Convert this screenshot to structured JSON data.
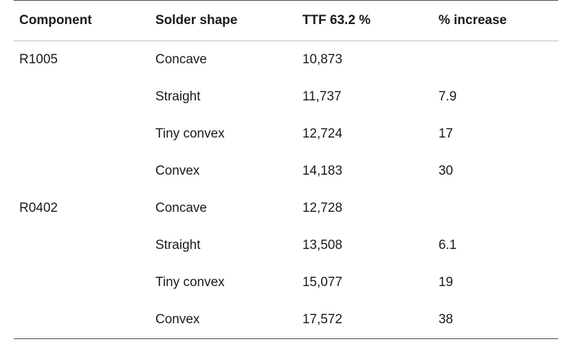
{
  "table": {
    "type": "table",
    "background_color": "#ffffff",
    "border_color_strong": "#444444",
    "border_color_light": "#bbbbbb",
    "header_fontsize": 19,
    "header_fontweight": 700,
    "cell_fontsize": 19,
    "cell_fontweight": 400,
    "text_color": "#1a1a1a",
    "row_vpadding": 16,
    "columns": [
      "Component",
      "Solder shape",
      "TTF 63.2 %",
      "% increase"
    ],
    "column_widths_pct": [
      25,
      27,
      25,
      23
    ],
    "column_align": [
      "left",
      "left",
      "left",
      "left"
    ],
    "rows": [
      [
        "R1005",
        "Concave",
        "10,873",
        ""
      ],
      [
        "",
        "Straight",
        "11,737",
        "7.9"
      ],
      [
        "",
        "Tiny convex",
        "12,724",
        "17"
      ],
      [
        "",
        "Convex",
        "14,183",
        "30"
      ],
      [
        "R0402",
        "Concave",
        "12,728",
        ""
      ],
      [
        "",
        "Straight",
        "13,508",
        "6.1"
      ],
      [
        "",
        "Tiny convex",
        "15,077",
        "19"
      ],
      [
        "",
        "Convex",
        "17,572",
        "38"
      ]
    ]
  }
}
